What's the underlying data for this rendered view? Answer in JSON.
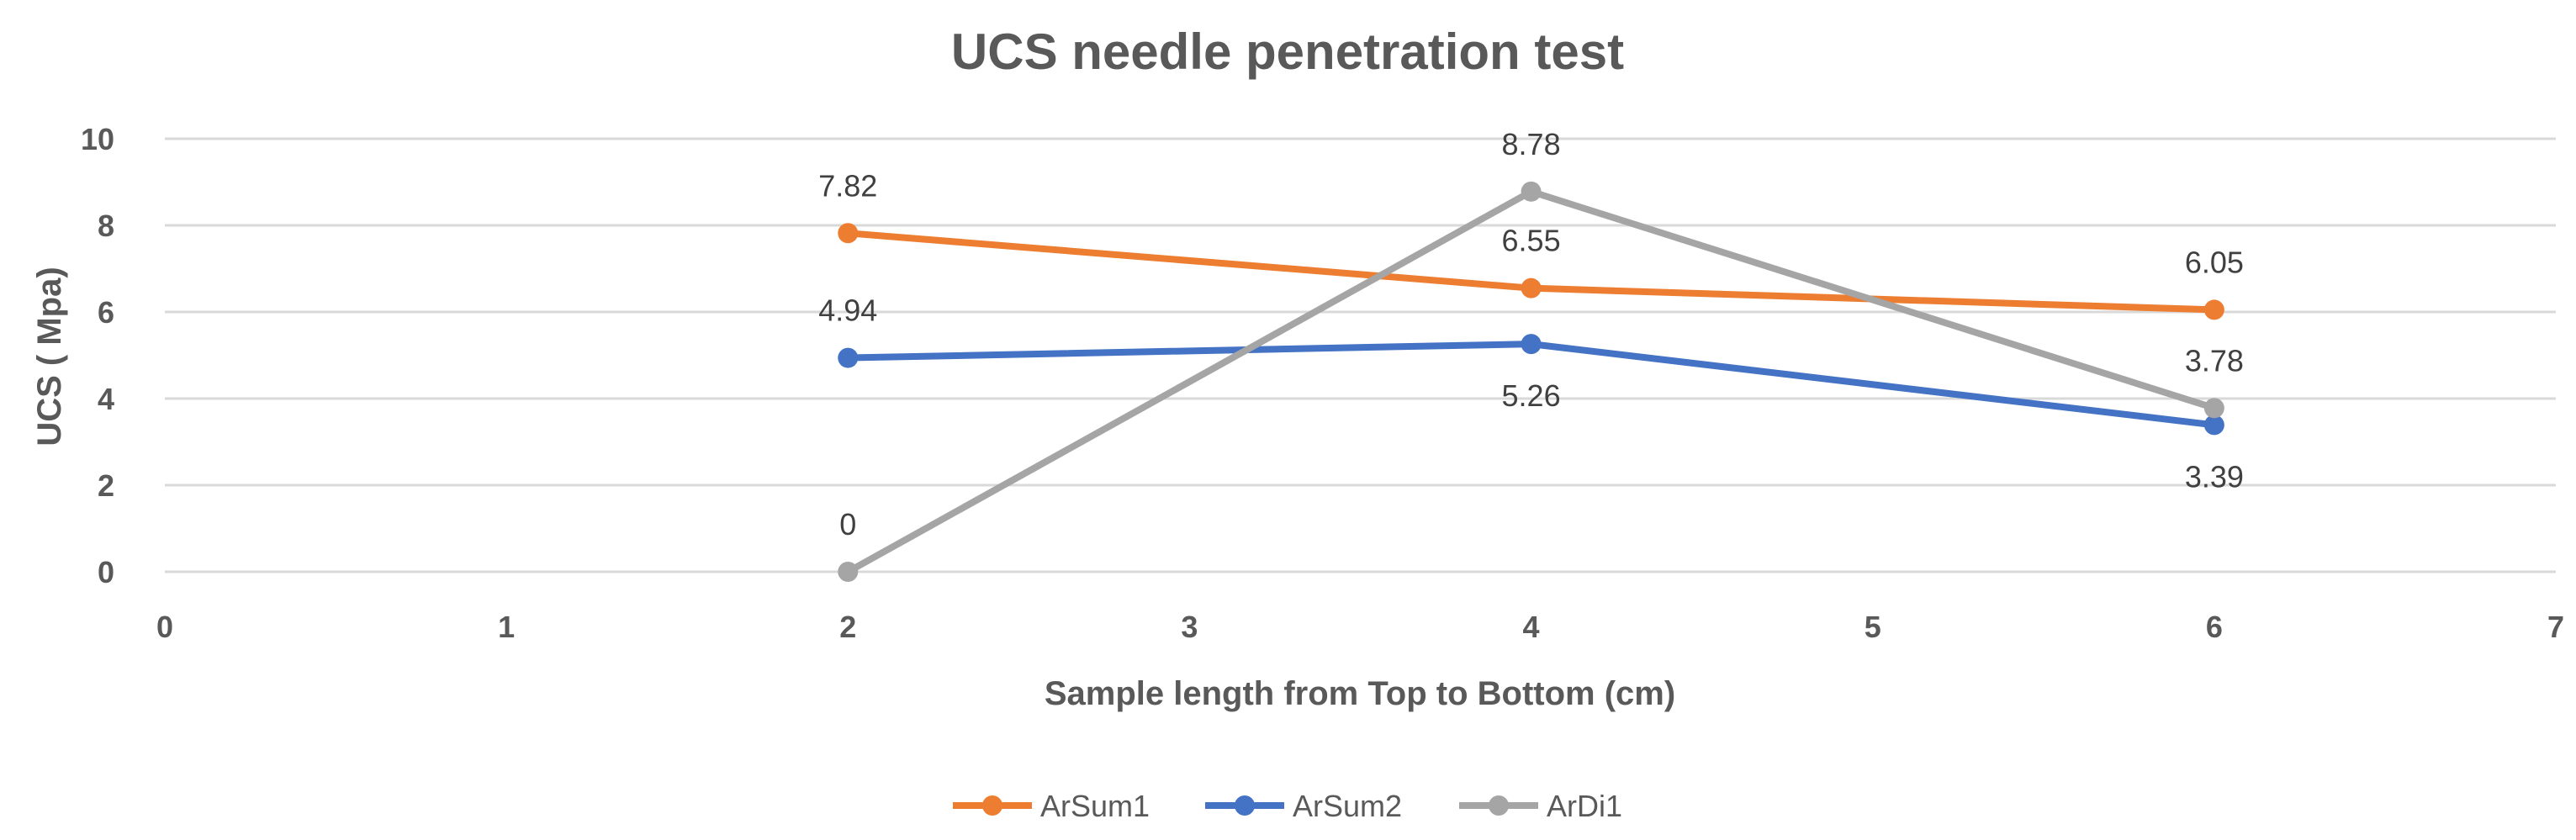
{
  "chart_data": {
    "type": "line",
    "title": "UCS needle penetration test",
    "xlabel": "Sample length from Top to Bottom (cm)",
    "ylabel": "UCS ( Mpa)",
    "xlim": [
      0,
      7
    ],
    "ylim": [
      0,
      10
    ],
    "xticks": [
      "0",
      "1",
      "2",
      "3",
      "4",
      "5",
      "6",
      "7"
    ],
    "yticks": [
      "0",
      "2",
      "4",
      "6",
      "8",
      "10"
    ],
    "grid": "horizontal",
    "legend_position": "bottom",
    "series": [
      {
        "name": "ArSum1",
        "color": "#ED7D31",
        "x": [
          2,
          4,
          6
        ],
        "values": [
          7.82,
          6.55,
          6.05
        ],
        "labels": [
          "7.82",
          "6.55",
          "6.05"
        ],
        "label_pos": [
          "above",
          "above",
          "above"
        ]
      },
      {
        "name": "ArSum2",
        "color": "#4472C4",
        "x": [
          2,
          4,
          6
        ],
        "values": [
          4.94,
          5.26,
          3.39
        ],
        "labels": [
          "4.94",
          "5.26",
          "3.39"
        ],
        "label_pos": [
          "above",
          "below",
          "below"
        ]
      },
      {
        "name": "ArDi1",
        "color": "#A5A5A5",
        "x": [
          2,
          4,
          6
        ],
        "values": [
          0,
          8.78,
          3.78
        ],
        "labels": [
          "0",
          "8.78",
          "3.78"
        ],
        "label_pos": [
          "above",
          "above",
          "above"
        ]
      }
    ]
  }
}
